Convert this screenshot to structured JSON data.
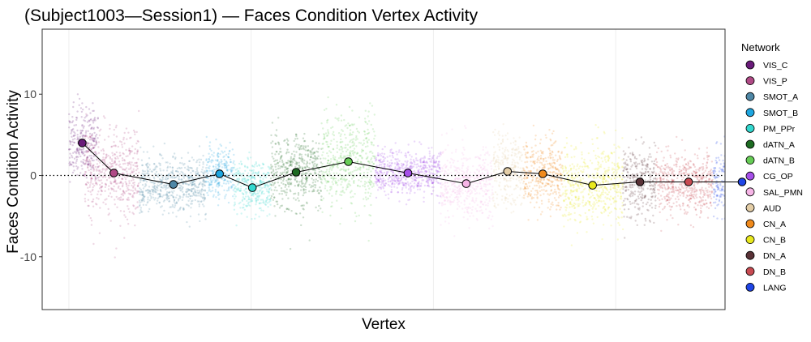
{
  "chart_data": {
    "type": "scatter",
    "title": "(Subject1003—Session1) — Faces Condition Vertex Activity",
    "xlabel": "Vertex",
    "ylabel": "Faces Condition Activity",
    "ylim": [
      -16.5,
      18
    ],
    "yticks": [
      {
        "value": 10,
        "label": "10"
      },
      {
        "value": 0,
        "label": "0"
      },
      {
        "value": -10,
        "label": "-10"
      }
    ],
    "x_range": [
      -2.2,
      54
    ],
    "x_gridlines": [
      0,
      15,
      30,
      45
    ],
    "reference_line": 0,
    "legend_title": "Network",
    "legend_position": "right",
    "series": [
      {
        "name": "VIS_C",
        "color": "#6a1b7a",
        "x_range": [
          0,
          2.4
        ],
        "mean": 4.0,
        "sd": 2.3
      },
      {
        "name": "VIS_P",
        "color": "#b04a86",
        "x_range": [
          1.3,
          5.8
        ],
        "mean": 0.3,
        "sd": 2.6
      },
      {
        "name": "SMOT_A",
        "color": "#4f87a6",
        "x_range": [
          5.8,
          11.3
        ],
        "mean": -1.1,
        "sd": 1.6
      },
      {
        "name": "SMOT_B",
        "color": "#1ea6e0",
        "x_range": [
          11.3,
          13.6
        ],
        "mean": 0.2,
        "sd": 1.6
      },
      {
        "name": "PM_PPr",
        "color": "#33d8cf",
        "x_range": [
          13.6,
          16.6
        ],
        "mean": -1.5,
        "sd": 1.7
      },
      {
        "name": "dATN_A",
        "color": "#1d6b22",
        "x_range": [
          16.6,
          20.8
        ],
        "mean": 0.4,
        "sd": 2.3
      },
      {
        "name": "dATN_B",
        "color": "#66cc55",
        "x_range": [
          20.8,
          25.2
        ],
        "mean": 1.7,
        "sd": 3.0
      },
      {
        "name": "CG_OP",
        "color": "#a64fe9",
        "x_range": [
          25.2,
          30.6
        ],
        "mean": 0.3,
        "sd": 1.4
      },
      {
        "name": "SAL_PMN",
        "color": "#f6b5e6",
        "x_range": [
          30.6,
          34.9
        ],
        "mean": -1.0,
        "sd": 2.1
      },
      {
        "name": "AUD",
        "color": "#e3cda6",
        "x_range": [
          34.9,
          37.4
        ],
        "mean": 0.5,
        "sd": 2.3
      },
      {
        "name": "CN_A",
        "color": "#f08a1c",
        "x_range": [
          37.4,
          40.6
        ],
        "mean": 0.2,
        "sd": 2.4
      },
      {
        "name": "CN_B",
        "color": "#e8e81e",
        "x_range": [
          40.6,
          45.6
        ],
        "mean": -1.2,
        "sd": 2.4
      },
      {
        "name": "DN_A",
        "color": "#5a3237",
        "x_range": [
          45.6,
          48.3
        ],
        "mean": -0.8,
        "sd": 2.2
      },
      {
        "name": "DN_B",
        "color": "#c84b52",
        "x_range": [
          48.3,
          53.0
        ],
        "mean": -0.8,
        "sd": 1.9
      },
      {
        "name": "LANG",
        "color": "#1f45e6",
        "x_range": [
          53.0,
          55.9
        ],
        "mean": -0.8,
        "sd": 2.0
      }
    ],
    "means_line": [
      {
        "x": 1.1,
        "y": 4.0
      },
      {
        "x": 3.7,
        "y": 0.3
      },
      {
        "x": 8.6,
        "y": -1.1
      },
      {
        "x": 12.4,
        "y": 0.2
      },
      {
        "x": 15.1,
        "y": -1.5
      },
      {
        "x": 18.7,
        "y": 0.4
      },
      {
        "x": 23.0,
        "y": 1.7
      },
      {
        "x": 27.9,
        "y": 0.3
      },
      {
        "x": 32.7,
        "y": -1.0
      },
      {
        "x": 36.1,
        "y": 0.5
      },
      {
        "x": 39.0,
        "y": 0.2
      },
      {
        "x": 43.1,
        "y": -1.2
      },
      {
        "x": 47.0,
        "y": -0.8
      },
      {
        "x": 51.0,
        "y": -0.8
      },
      {
        "x": 55.4,
        "y": -0.8
      }
    ]
  }
}
